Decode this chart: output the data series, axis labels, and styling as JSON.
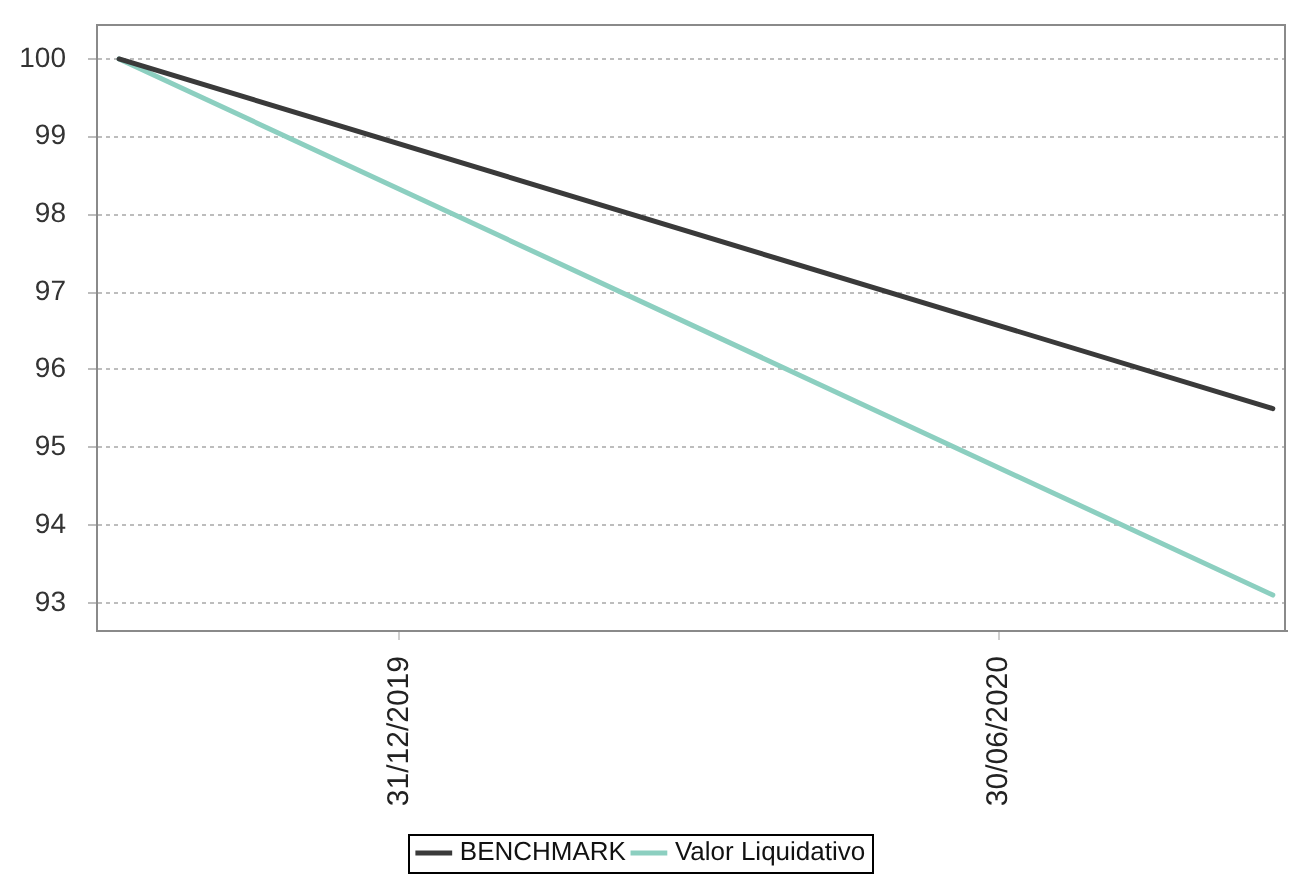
{
  "chart_data": {
    "type": "line",
    "series": [
      {
        "name": "BENCHMARK",
        "color": "#3a3a3a",
        "x": [
          "2019-10-07",
          "2020-09-21"
        ],
        "values": [
          100,
          95.5
        ]
      },
      {
        "name": "Valor Liquidativo",
        "color": "#8ccfc0",
        "x": [
          "2019-10-07",
          "2020-09-21"
        ],
        "values": [
          100,
          93.1
        ]
      }
    ],
    "xlim": [
      "2019-09-30",
      "2020-09-25"
    ],
    "xticks": [
      {
        "value": "2019-12-31",
        "label": "31/12/2019"
      },
      {
        "value": "2020-06-30",
        "label": "30/06/2020"
      }
    ],
    "ylim": [
      92.65,
      100.45
    ],
    "yticks": [
      93,
      94,
      95,
      96,
      97,
      98,
      99,
      100
    ],
    "grid": "y",
    "legend": "bottom",
    "line_style": "solid"
  }
}
